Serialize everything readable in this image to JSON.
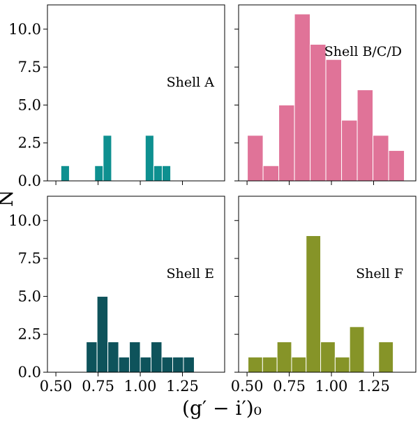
{
  "figure": {
    "ylabel": "N",
    "xlabel": "(g′ − i′)₀"
  },
  "chart_data": [
    {
      "type": "bar",
      "label": "Shell A",
      "color": "#0e9090",
      "bin_width": 0.05,
      "bin_starts": [
        0.53,
        0.73,
        0.78,
        1.03,
        1.08,
        1.13
      ],
      "values": [
        1,
        1,
        3,
        3,
        1,
        1
      ],
      "xlim": [
        0.45,
        1.5
      ],
      "ylim": [
        0,
        11.6
      ],
      "yticks": [
        "0.0",
        "2.5",
        "5.0",
        "7.5",
        "10.0"
      ],
      "xticks": [
        "0.50",
        "0.75",
        "1.00",
        "1.25"
      ],
      "show_ytick_labels": true,
      "show_xtick_labels": false
    },
    {
      "type": "bar",
      "label": "Shell B/C/D",
      "color": "#e07398",
      "bin_width": 0.093,
      "bin_starts": [
        0.502,
        0.595,
        0.688,
        0.781,
        0.874,
        0.967,
        1.06,
        1.153,
        1.246,
        1.339
      ],
      "values": [
        3,
        1,
        5,
        11,
        9,
        8,
        4,
        6,
        3,
        2
      ],
      "xlim": [
        0.45,
        1.5
      ],
      "ylim": [
        0,
        11.6
      ],
      "yticks": [
        "0.0",
        "2.5",
        "5.0",
        "7.5",
        "10.0"
      ],
      "xticks": [
        "0.50",
        "0.75",
        "1.00",
        "1.25"
      ],
      "show_ytick_labels": false,
      "show_xtick_labels": false
    },
    {
      "type": "bar",
      "label": "Shell E",
      "color": "#0e535b",
      "bin_width": 0.064,
      "bin_starts": [
        0.68,
        0.744,
        0.808,
        0.872,
        0.936,
        1.0,
        1.064,
        1.128,
        1.192,
        1.256
      ],
      "values": [
        2,
        5,
        2,
        1,
        2,
        1,
        2,
        1,
        1,
        1
      ],
      "xlim": [
        0.45,
        1.5
      ],
      "ylim": [
        0,
        11.6
      ],
      "yticks": [
        "0.0",
        "2.5",
        "5.0",
        "7.5",
        "10.0"
      ],
      "xticks": [
        "0.50",
        "0.75",
        "1.00",
        "1.25"
      ],
      "show_ytick_labels": true,
      "show_xtick_labels": true
    },
    {
      "type": "bar",
      "label": "Shell F",
      "color": "#869428",
      "bin_width": 0.086,
      "bin_starts": [
        0.506,
        0.592,
        0.678,
        0.764,
        0.85,
        0.936,
        1.022,
        1.108,
        1.194,
        1.28
      ],
      "values": [
        1,
        1,
        2,
        1,
        9,
        2,
        1,
        3,
        0,
        2
      ],
      "xlim": [
        0.45,
        1.5
      ],
      "ylim": [
        0,
        11.6
      ],
      "yticks": [
        "0.0",
        "2.5",
        "5.0",
        "7.5",
        "10.0"
      ],
      "xticks": [
        "0.50",
        "0.75",
        "1.00",
        "1.25"
      ],
      "show_ytick_labels": false,
      "show_xtick_labels": true
    }
  ]
}
